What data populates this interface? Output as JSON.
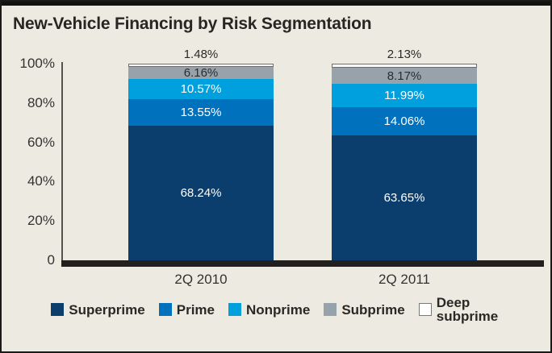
{
  "window": {
    "title": "New-Vehicle Financing by Risk Segmentation"
  },
  "chart_data": {
    "type": "bar",
    "stacked": true,
    "title": "New-Vehicle Financing by Risk Segmentation",
    "categories": [
      "2Q 2010",
      "2Q 2011"
    ],
    "series": [
      {
        "name": "Superprime",
        "color": "#0b3e6c",
        "values": [
          68.24,
          63.65
        ],
        "labels": [
          "68.24%",
          "63.65%"
        ],
        "label_color": "#ffffff",
        "label_outside": false
      },
      {
        "name": "Prime",
        "color": "#0071bd",
        "values": [
          13.55,
          14.06
        ],
        "labels": [
          "13.55%",
          "14.06%"
        ],
        "label_color": "#ffffff",
        "label_outside": false
      },
      {
        "name": "Nonprime",
        "color": "#00a0de",
        "values": [
          10.57,
          11.99
        ],
        "labels": [
          "10.57%",
          "11.99%"
        ],
        "label_color": "#ffffff",
        "label_outside": false
      },
      {
        "name": "Subprime",
        "color": "#98a2aa",
        "values": [
          6.16,
          8.17
        ],
        "labels": [
          "6.16%",
          "8.17%"
        ],
        "label_color": "#2a2d2f",
        "label_outside": false
      },
      {
        "name": "Deep subprime",
        "color": "#ffffff",
        "values": [
          1.48,
          2.13
        ],
        "labels": [
          "1.48%",
          "2.13%"
        ],
        "label_color": "#2b2a27",
        "label_outside": true,
        "border_color": "#6e6e6e"
      }
    ],
    "y_ticks": [
      {
        "label": "100%",
        "value": 100
      },
      {
        "label": "80%",
        "value": 80
      },
      {
        "label": "60%",
        "value": 60
      },
      {
        "label": "40%",
        "value": 40
      },
      {
        "label": "20%",
        "value": 20
      },
      {
        "label": "0",
        "value": 0
      }
    ],
    "ylim": [
      0,
      100
    ],
    "grid": false,
    "legend_position": "bottom"
  }
}
